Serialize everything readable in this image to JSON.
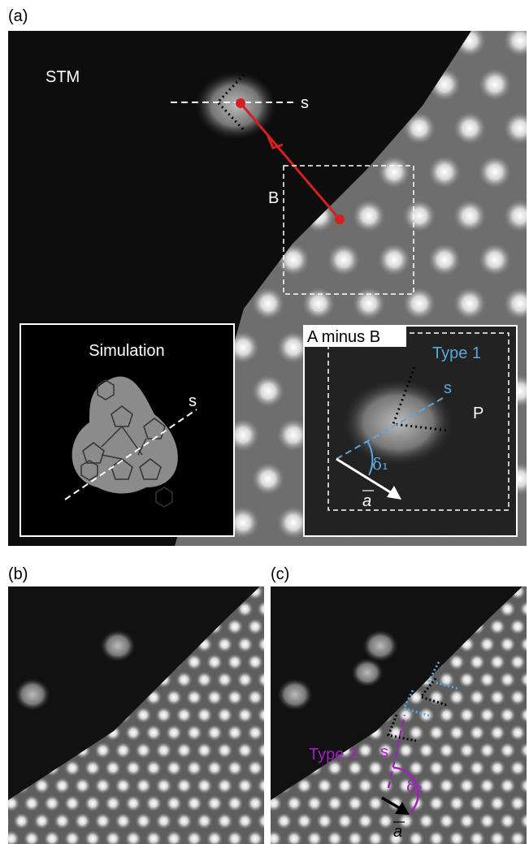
{
  "panels": {
    "a": {
      "label": "(a)",
      "stm": "STM",
      "s": "s",
      "box": "B",
      "simulation": {
        "title": "Simulation",
        "s": "s"
      },
      "difference": {
        "title": "A minus B",
        "type": "Type 1",
        "s": "s",
        "p": "P",
        "angle": "δ₁",
        "vector": "a"
      }
    },
    "b": {
      "label": "(b)"
    },
    "c": {
      "label": "(c)",
      "type": "Type 2",
      "s": "s",
      "angle": "δ₂",
      "vector": "a"
    }
  }
}
